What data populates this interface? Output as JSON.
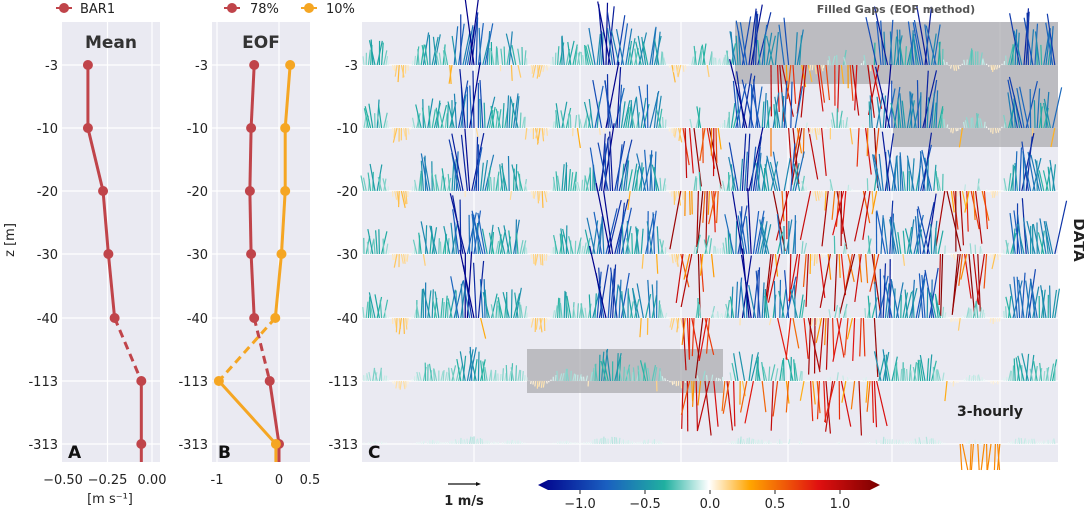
{
  "chart_data": [
    {
      "panel": "A",
      "type": "line",
      "title": "Mean",
      "xlabel": "[m s⁻¹]",
      "ylabel": "z [m]",
      "categories": [
        "-3",
        "-10",
        "-20",
        "-30",
        "-40",
        "-113",
        "-313"
      ],
      "xticks": [
        "−0.50",
        "−0.25",
        "0.00"
      ],
      "xlim": [
        -0.5,
        0.05
      ],
      "dashed_segment_between": [
        "-40",
        "-113"
      ],
      "series": [
        {
          "name": "BAR1",
          "color": "#c0444a",
          "values": [
            -0.36,
            -0.36,
            -0.275,
            -0.245,
            -0.21,
            -0.06,
            -0.06
          ]
        }
      ],
      "grid": true
    },
    {
      "panel": "B",
      "type": "line",
      "title": "EOF",
      "categories": [
        "-3",
        "-10",
        "-20",
        "-30",
        "-40",
        "-113",
        "-313"
      ],
      "xticks": [
        "-1",
        "0",
        "0.5"
      ],
      "xlim": [
        -1.05,
        0.5
      ],
      "dashed_segment_between": [
        "-40",
        "-113"
      ],
      "series": [
        {
          "name": "78%",
          "color": "#c0444a",
          "values": [
            -0.4,
            -0.45,
            -0.47,
            -0.45,
            -0.4,
            -0.15,
            0.0
          ]
        },
        {
          "name": "10%",
          "color": "#f5a623",
          "values": [
            0.18,
            0.1,
            0.1,
            0.04,
            -0.06,
            -0.97,
            -0.05
          ]
        }
      ],
      "grid": true
    },
    {
      "panel": "C",
      "type": "quiver",
      "categories": [
        "-3",
        "-10",
        "-20",
        "-30",
        "-40",
        "-113",
        "-313"
      ],
      "right_label": "DATA",
      "annotation_top": "Filled Gaps (EOF method)",
      "annotation_inner": "3-hourly",
      "scale_label": "1 m/s",
      "colorbar": {
        "ticks": [
          "−1.0",
          "−0.5",
          "0.0",
          "0.5",
          "1.0"
        ],
        "range": [
          -1.25,
          1.25
        ],
        "colors": [
          "#00008b",
          "#1a5fc0",
          "#20b0a0",
          "#ffffff",
          "#ffa500",
          "#e01010",
          "#7a0000"
        ]
      },
      "highlight_regions": [
        {
          "depths": [
            "-3"
          ]
        },
        {
          "depths": [
            "-3",
            "-10"
          ]
        },
        {
          "depths": [
            "-113"
          ]
        }
      ]
    }
  ],
  "letters": [
    "A",
    "B",
    "C"
  ]
}
